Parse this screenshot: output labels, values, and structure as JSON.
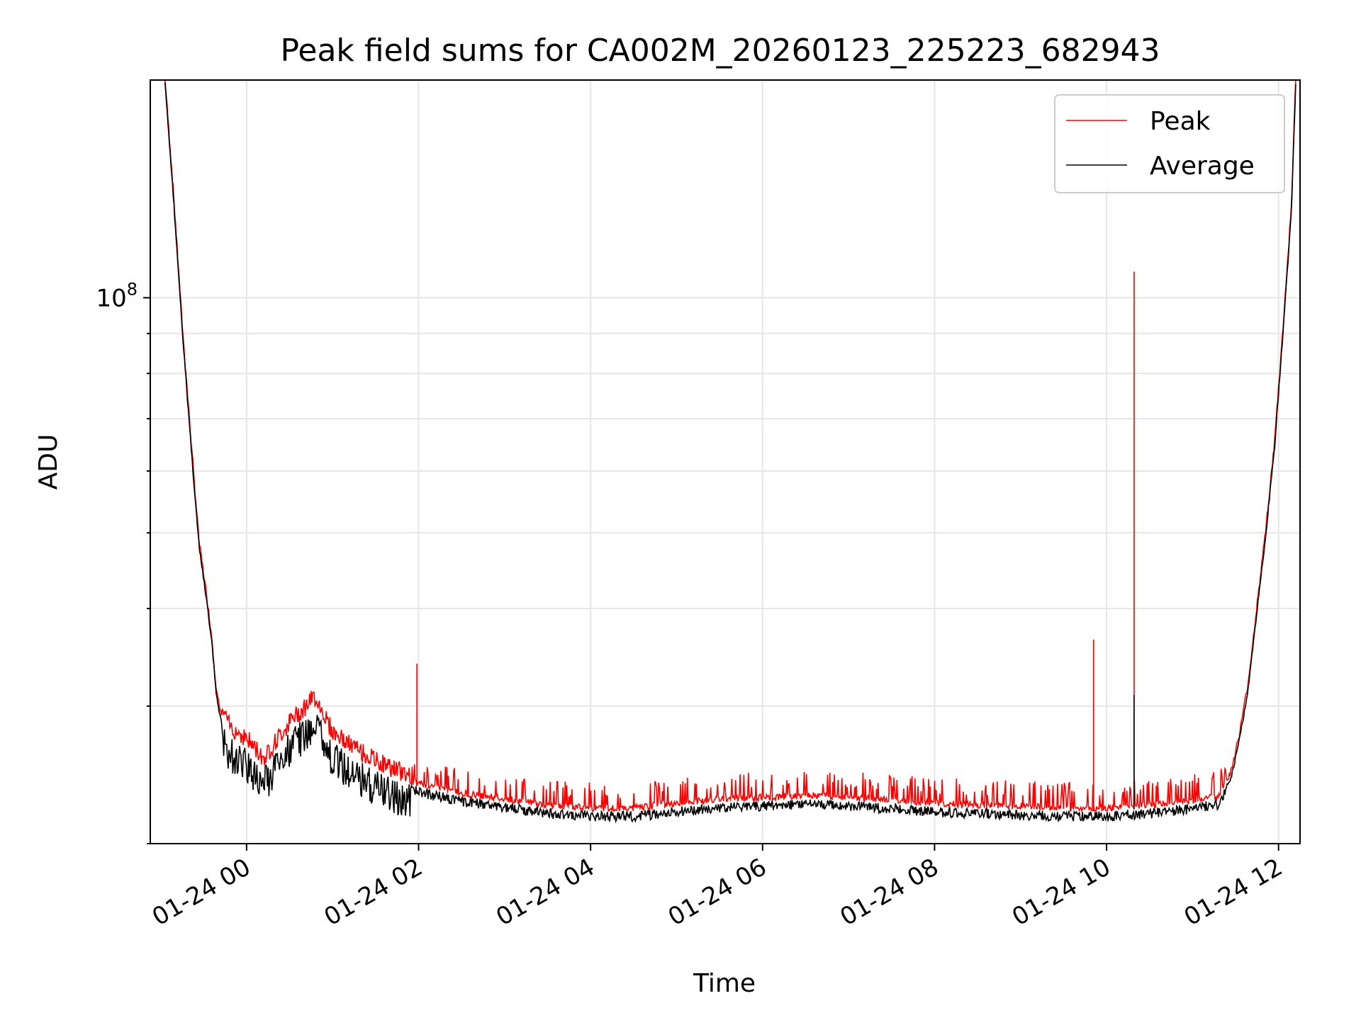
{
  "chart_data": {
    "type": "line",
    "title": "Peak field sums for CA002M_20260123_225223_682943",
    "xlabel": "Time",
    "ylabel": "ADU",
    "yscale": "log",
    "ylim": [
      20000000,
      190000000
    ],
    "xlim_hours": [
      -1.12,
      12.25
    ],
    "grid": true,
    "legend_position": "top-right",
    "x_ticks": [
      {
        "hour": 0,
        "label": "01-24 00"
      },
      {
        "hour": 2,
        "label": "01-24 02"
      },
      {
        "hour": 4,
        "label": "01-24 04"
      },
      {
        "hour": 6,
        "label": "01-24 06"
      },
      {
        "hour": 8,
        "label": "01-24 08"
      },
      {
        "hour": 10,
        "label": "01-24 10"
      },
      {
        "hour": 12,
        "label": "01-24 12"
      }
    ],
    "y_ticks": [
      {
        "value": 100000000,
        "base": "10",
        "exp": "8"
      }
    ],
    "series": [
      {
        "name": "Peak",
        "color": "#ff0000",
        "spikes": [
          {
            "hour": 1.98,
            "value": 34000000
          },
          {
            "hour": 9.85,
            "value": 36500000
          },
          {
            "hour": 10.32,
            "value": 108000000
          }
        ]
      },
      {
        "name": "Average",
        "color": "#000000",
        "points": [
          {
            "hour": -0.95,
            "value": 190000000
          },
          {
            "hour": -0.85,
            "value": 135000000
          },
          {
            "hour": -0.75,
            "value": 92000000
          },
          {
            "hour": -0.65,
            "value": 66000000
          },
          {
            "hour": -0.6,
            "value": 56000000
          },
          {
            "hour": -0.55,
            "value": 48000000
          },
          {
            "hour": -0.5,
            "value": 44000000
          },
          {
            "hour": -0.45,
            "value": 40000000
          },
          {
            "hour": -0.4,
            "value": 36000000
          },
          {
            "hour": -0.35,
            "value": 31000000
          },
          {
            "hour": -0.3,
            "value": 29000000
          },
          {
            "hour": -0.2,
            "value": 27500000
          },
          {
            "hour": 0.0,
            "value": 26500000
          },
          {
            "hour": 0.2,
            "value": 25000000
          },
          {
            "hour": 0.5,
            "value": 27800000
          },
          {
            "hour": 0.8,
            "value": 30000000
          },
          {
            "hour": 1.0,
            "value": 27000000
          },
          {
            "hour": 1.2,
            "value": 26000000
          },
          {
            "hour": 1.5,
            "value": 24800000
          },
          {
            "hour": 1.8,
            "value": 24000000
          },
          {
            "hour": 2.1,
            "value": 23500000
          },
          {
            "hour": 2.5,
            "value": 23000000
          },
          {
            "hour": 3.0,
            "value": 22600000
          },
          {
            "hour": 3.5,
            "value": 22200000
          },
          {
            "hour": 4.0,
            "value": 22000000
          },
          {
            "hour": 4.5,
            "value": 22000000
          },
          {
            "hour": 5.0,
            "value": 22300000
          },
          {
            "hour": 5.5,
            "value": 22600000
          },
          {
            "hour": 6.0,
            "value": 22700000
          },
          {
            "hour": 6.5,
            "value": 22800000
          },
          {
            "hour": 7.0,
            "value": 22700000
          },
          {
            "hour": 7.5,
            "value": 22500000
          },
          {
            "hour": 8.0,
            "value": 22300000
          },
          {
            "hour": 8.5,
            "value": 22200000
          },
          {
            "hour": 9.0,
            "value": 22100000
          },
          {
            "hour": 9.5,
            "value": 22000000
          },
          {
            "hour": 10.0,
            "value": 22000000
          },
          {
            "hour": 10.5,
            "value": 22200000
          },
          {
            "hour": 11.0,
            "value": 22500000
          },
          {
            "hour": 11.3,
            "value": 22800000
          },
          {
            "hour": 11.45,
            "value": 24500000
          },
          {
            "hour": 11.55,
            "value": 27500000
          },
          {
            "hour": 11.65,
            "value": 32000000
          },
          {
            "hour": 11.75,
            "value": 40000000
          },
          {
            "hour": 11.85,
            "value": 50000000
          },
          {
            "hour": 11.95,
            "value": 64000000
          },
          {
            "hour": 12.05,
            "value": 90000000
          },
          {
            "hour": 12.15,
            "value": 130000000
          },
          {
            "hour": 12.2,
            "value": 190000000
          }
        ]
      }
    ]
  }
}
